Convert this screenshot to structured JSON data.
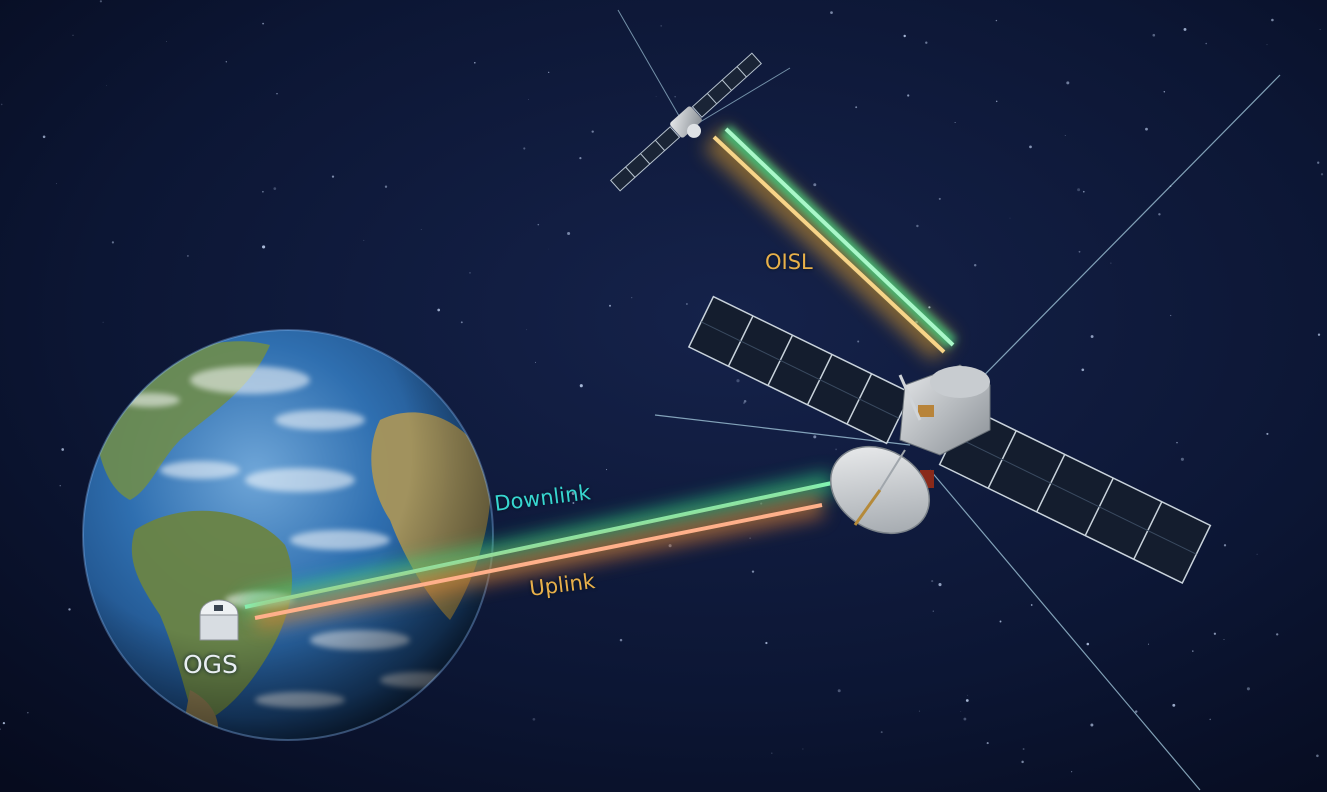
{
  "labels": {
    "downlink": "Downlink",
    "uplink": "Uplink",
    "oisl": "OISL",
    "ogs": "OGS"
  },
  "colors": {
    "space": "#0b1530",
    "ocean": "#2f6fb0",
    "land": "#7a8a4a",
    "downlink_beam": "#33e08a",
    "uplink_beam": "#f08a5a",
    "oisl_beam_green": "#3ee08a",
    "oisl_beam_yellow": "#f2c060",
    "label_cyan": "#37d6d0",
    "label_gold": "#e8b04a",
    "label_white": "#e8eef2"
  }
}
